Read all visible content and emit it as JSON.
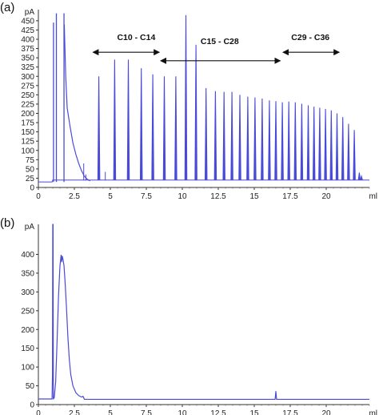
{
  "chart_data": [
    {
      "type": "line",
      "panel_label": "(a)",
      "ylabel": "pA",
      "xlabel": "ml",
      "xlim": [
        0,
        23
      ],
      "ylim": [
        0,
        480
      ],
      "x_ticks": [
        0,
        2.5,
        5,
        7.5,
        10,
        12.5,
        15,
        17.5,
        20
      ],
      "x_tick_labels": [
        "0",
        "2.5",
        "5",
        "7.5",
        "10",
        "12.5",
        "15",
        "17.5",
        "20"
      ],
      "y_ticks": [
        0,
        25,
        50,
        75,
        100,
        125,
        150,
        175,
        200,
        225,
        250,
        275,
        300,
        325,
        350,
        375,
        400,
        425,
        450
      ],
      "y_tick_labels": [
        "0",
        "25",
        "50",
        "75",
        "100",
        "125",
        "150",
        "175",
        "200",
        "225",
        "250",
        "275",
        "300",
        "325",
        "350",
        "375",
        "400",
        "425",
        "450"
      ],
      "baseline": 15,
      "series_color": "#4a4ad8",
      "solvent_peaks": [
        {
          "x": 1.05,
          "y": 445
        },
        {
          "x": 1.25,
          "y": 470
        },
        {
          "x": 1.78,
          "y": 470
        }
      ],
      "solvent_tail": [
        [
          1.8,
          440
        ],
        [
          1.9,
          300
        ],
        [
          2.0,
          215
        ],
        [
          2.2,
          165
        ],
        [
          2.4,
          120
        ],
        [
          2.6,
          90
        ],
        [
          2.8,
          65
        ],
        [
          3.0,
          45
        ],
        [
          3.2,
          30
        ],
        [
          3.4,
          22
        ],
        [
          3.6,
          18
        ]
      ],
      "small_peaks": [
        {
          "x": 3.15,
          "y": 65
        },
        {
          "x": 3.3,
          "y": 35
        },
        {
          "x": 4.65,
          "y": 42
        },
        {
          "x": 10.95,
          "y": 35
        }
      ],
      "peaks": [
        {
          "x": 4.2,
          "y": 300
        },
        {
          "x": 5.3,
          "y": 345
        },
        {
          "x": 6.25,
          "y": 345
        },
        {
          "x": 7.15,
          "y": 322
        },
        {
          "x": 7.95,
          "y": 305
        },
        {
          "x": 8.75,
          "y": 300
        },
        {
          "x": 9.55,
          "y": 300
        },
        {
          "x": 10.25,
          "y": 465
        },
        {
          "x": 10.95,
          "y": 385
        },
        {
          "x": 11.65,
          "y": 268
        },
        {
          "x": 12.3,
          "y": 260
        },
        {
          "x": 12.9,
          "y": 258
        },
        {
          "x": 13.45,
          "y": 258
        },
        {
          "x": 14.0,
          "y": 250
        },
        {
          "x": 14.55,
          "y": 245
        },
        {
          "x": 15.05,
          "y": 243
        },
        {
          "x": 15.55,
          "y": 240
        },
        {
          "x": 16.05,
          "y": 235
        },
        {
          "x": 16.5,
          "y": 233
        },
        {
          "x": 16.95,
          "y": 230
        },
        {
          "x": 17.4,
          "y": 232
        },
        {
          "x": 17.85,
          "y": 230
        },
        {
          "x": 18.3,
          "y": 226
        },
        {
          "x": 18.75,
          "y": 222
        },
        {
          "x": 19.15,
          "y": 218
        },
        {
          "x": 19.55,
          "y": 215
        },
        {
          "x": 19.95,
          "y": 212
        },
        {
          "x": 20.35,
          "y": 208
        },
        {
          "x": 20.75,
          "y": 200
        },
        {
          "x": 21.15,
          "y": 190
        },
        {
          "x": 21.55,
          "y": 172
        },
        {
          "x": 21.95,
          "y": 155
        },
        {
          "x": 22.3,
          "y": 40
        },
        {
          "x": 22.45,
          "y": 30
        }
      ],
      "annotations": [
        {
          "text": "C10 - C14",
          "label_x": 6.8,
          "label_y": 398,
          "arrow_x1": 3.8,
          "arrow_x2": 8.4,
          "arrow_y": 365
        },
        {
          "text": "C15 - C28",
          "label_x": 12.6,
          "label_y": 387,
          "arrow_x1": 8.5,
          "arrow_x2": 16.8,
          "arrow_y": 342
        },
        {
          "text": "C29 - C36",
          "label_x": 18.9,
          "label_y": 398,
          "arrow_x1": 17.0,
          "arrow_x2": 20.9,
          "arrow_y": 365
        }
      ]
    },
    {
      "type": "line",
      "panel_label": "(b)",
      "ylabel": "pA",
      "xlabel": "ml",
      "xlim": [
        0,
        23
      ],
      "ylim": [
        0,
        480
      ],
      "x_ticks": [
        0,
        2.5,
        5,
        7.5,
        10,
        12.5,
        15,
        17.5,
        20
      ],
      "x_tick_labels": [
        "0",
        "2.5",
        "5",
        "7.5",
        "10",
        "12.5",
        "15",
        "17.5",
        "20"
      ],
      "y_ticks": [
        0,
        50,
        100,
        150,
        200,
        250,
        300,
        350,
        400
      ],
      "y_tick_labels": [
        "0",
        "50",
        "100",
        "150",
        "200",
        "250",
        "300",
        "350",
        "400"
      ],
      "series_color": "#4a4ad8",
      "trace": [
        [
          0.0,
          15
        ],
        [
          0.95,
          15
        ],
        [
          0.98,
          80
        ],
        [
          1.0,
          480
        ],
        [
          1.02,
          480
        ],
        [
          1.04,
          15
        ],
        [
          1.1,
          18
        ],
        [
          1.2,
          60
        ],
        [
          1.3,
          170
        ],
        [
          1.4,
          290
        ],
        [
          1.5,
          370
        ],
        [
          1.58,
          398
        ],
        [
          1.62,
          380
        ],
        [
          1.66,
          395
        ],
        [
          1.72,
          385
        ],
        [
          1.78,
          370
        ],
        [
          1.85,
          330
        ],
        [
          1.95,
          260
        ],
        [
          2.05,
          180
        ],
        [
          2.15,
          120
        ],
        [
          2.25,
          80
        ],
        [
          2.4,
          50
        ],
        [
          2.6,
          32
        ],
        [
          2.8,
          24
        ],
        [
          3.0,
          20
        ],
        [
          3.1,
          22
        ],
        [
          3.2,
          14
        ],
        [
          5.0,
          14
        ],
        [
          10.0,
          14
        ],
        [
          16.45,
          14
        ],
        [
          16.5,
          35
        ],
        [
          16.55,
          14
        ],
        [
          23.0,
          14
        ]
      ]
    }
  ]
}
